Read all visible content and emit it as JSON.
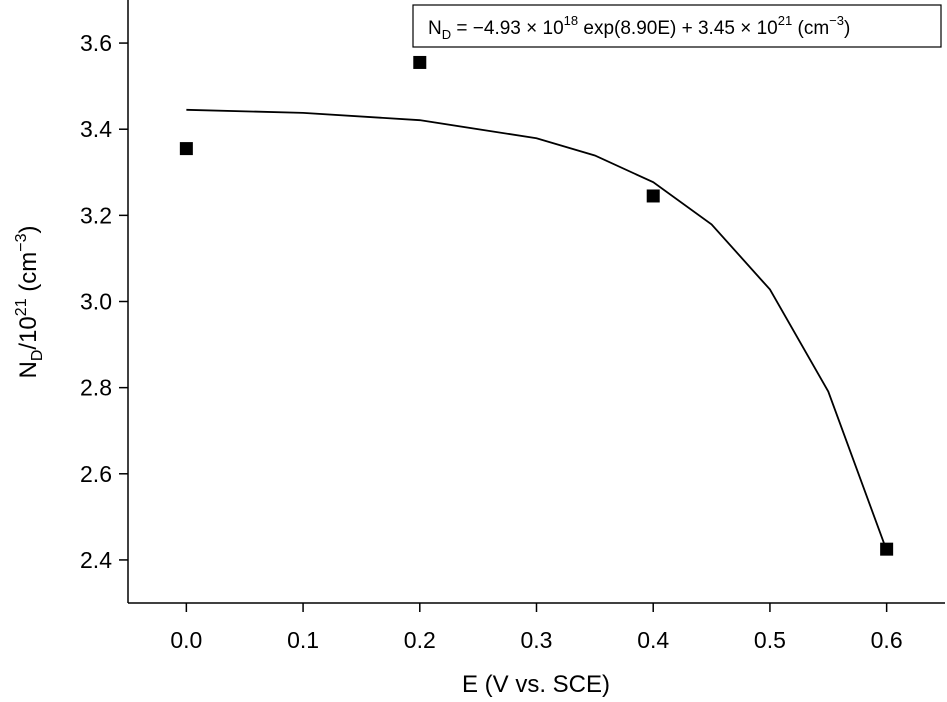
{
  "chart_data": {
    "type": "scatter",
    "x_label": "E (V vs. SCE)",
    "y_label": [
      "N",
      "D",
      "/10",
      "21",
      " (cm",
      "−3",
      ")"
    ],
    "annotation": [
      "N",
      "D",
      " = −4.93 × 10",
      "18",
      " exp(8.90E) + 3.45 × 10",
      "21",
      " (cm",
      "−3",
      ")"
    ],
    "xlim": [
      -0.05,
      0.65
    ],
    "ylim": [
      2.3,
      3.7
    ],
    "xticks": [
      {
        "value": 0,
        "label": "0.0"
      },
      0.1,
      0.2,
      0.3,
      0.4,
      0.5,
      0.6
    ],
    "yticks": [
      2.4,
      2.6,
      2.8,
      {
        "value": 3,
        "label": "3.0"
      },
      3.2,
      3.4,
      3.6
    ],
    "color": "#000000",
    "points": {
      "x": [
        0,
        0.2,
        0.4,
        0.6
      ],
      "y": [
        3.355,
        3.555,
        3.245,
        2.425
      ]
    },
    "fit": {
      "x": [
        0,
        0.1,
        0.2,
        0.3,
        0.35,
        0.4,
        0.45,
        0.5,
        0.55,
        0.6
      ],
      "y": [
        3.445,
        3.438,
        3.421,
        3.379,
        3.339,
        3.277,
        3.179,
        3.028,
        2.791,
        2.422
      ]
    }
  }
}
